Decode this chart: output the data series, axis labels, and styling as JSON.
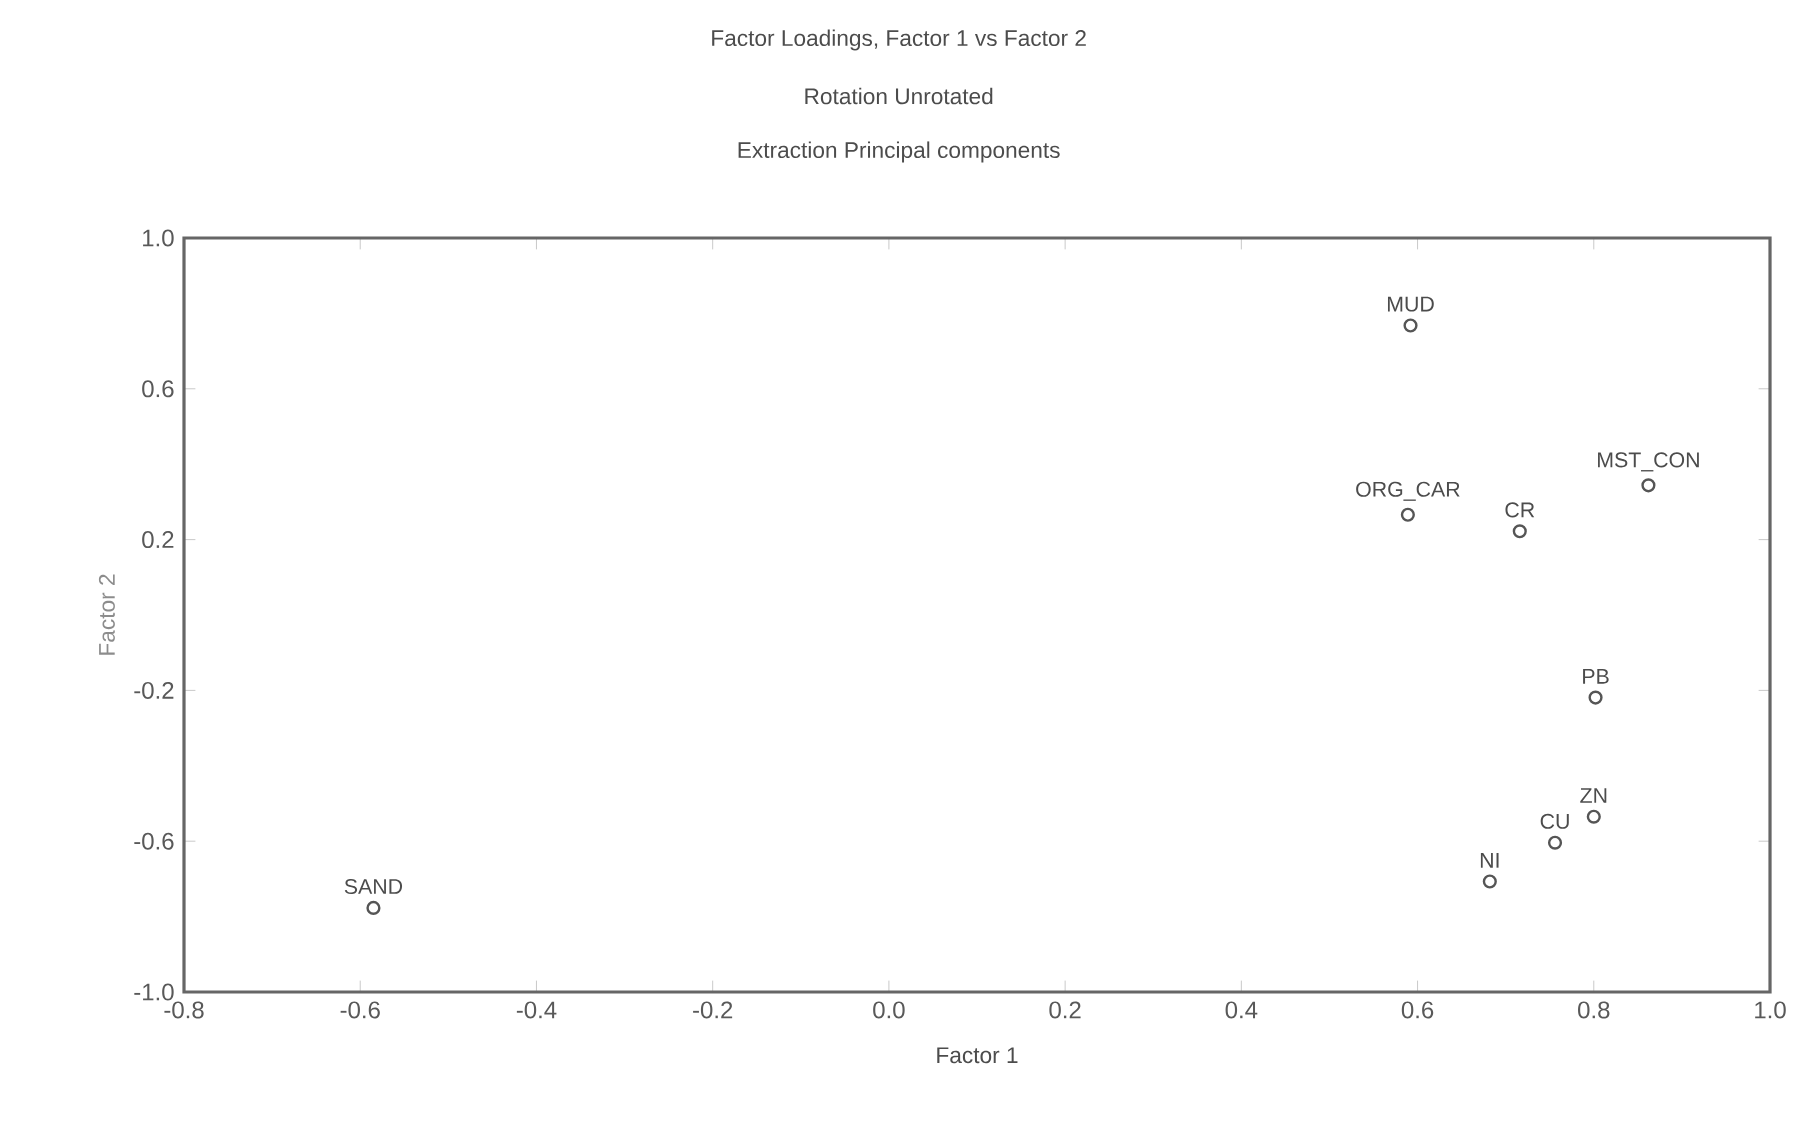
{
  "chart_data": {
    "type": "scatter",
    "title": "Factor Loadings, Factor 1 vs Factor 2",
    "subtitle": "Rotation Unrotated",
    "xlabel": "Factor 1",
    "ylabel": "Factor 2",
    "xlim": [
      -0.8,
      1.0
    ],
    "xticks": [
      -0.8,
      -0.6,
      -0.4,
      -0.2,
      {
        "value": 0,
        "label": "0.0"
      },
      0.2,
      0.4,
      0.6,
      0.8,
      {
        "value": 1,
        "label": "1.0"
      }
    ],
    "ylim": [
      -1.0,
      1.0
    ],
    "yticks": [
      {
        "value": -1,
        "label": "-1.0"
      },
      -0.6,
      -0.2,
      0.2,
      0.6,
      {
        "value": 1,
        "label": "1.0"
      }
    ],
    "marker": "circle",
    "grid": false,
    "series": [
      {
        "color": "#555555",
        "x": [
          -0.585,
          0.592,
          0.589,
          0.716,
          0.862,
          0.802,
          0.8,
          0.756,
          0.682
        ],
        "values": [
          -0.777,
          0.768,
          0.266,
          0.222,
          0.344,
          -0.219,
          -0.535,
          -0.604,
          -0.707
        ]
      }
    ],
    "annotations": [
      "Extraction Principal components",
      {
        "text": "SAND",
        "x": -0.585,
        "y": -0.777
      },
      {
        "text": "MUD",
        "x": 0.592,
        "y": 0.768
      },
      {
        "text": "ORG_CAR",
        "x": 0.589,
        "y": 0.266
      },
      {
        "text": "CR",
        "x": 0.716,
        "y": 0.222
      },
      {
        "text": "MST_CON",
        "x": 0.862,
        "y": 0.344
      },
      {
        "text": "PB",
        "x": 0.802,
        "y": -0.219
      },
      {
        "text": "ZN",
        "x": 0.8,
        "y": -0.535
      },
      {
        "text": "CU",
        "x": 0.756,
        "y": -0.604
      },
      {
        "text": "NI",
        "x": 0.682,
        "y": -0.707
      }
    ]
  }
}
